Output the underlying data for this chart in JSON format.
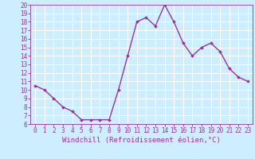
{
  "x": [
    0,
    1,
    2,
    3,
    4,
    5,
    6,
    7,
    8,
    9,
    10,
    11,
    12,
    13,
    14,
    15,
    16,
    17,
    18,
    19,
    20,
    21,
    22,
    23
  ],
  "y": [
    10.5,
    10.0,
    9.0,
    8.0,
    7.5,
    6.5,
    6.5,
    6.5,
    6.5,
    10.0,
    14.0,
    18.0,
    18.5,
    17.5,
    20.0,
    18.0,
    15.5,
    14.0,
    15.0,
    15.5,
    14.5,
    12.5,
    11.5,
    11.0
  ],
  "line_color": "#993399",
  "marker": "D",
  "marker_size": 2.0,
  "linewidth": 1.0,
  "bg_color": "#cceeff",
  "grid_color": "#ffffff",
  "tick_color": "#993399",
  "label_color": "#993399",
  "xlabel": "Windchill (Refroidissement éolien,°C)",
  "xlabel_fontsize": 6.5,
  "tick_fontsize": 5.5,
  "ylim": [
    6,
    20
  ],
  "yticks": [
    6,
    7,
    8,
    9,
    10,
    11,
    12,
    13,
    14,
    15,
    16,
    17,
    18,
    19,
    20
  ],
  "xticks": [
    0,
    1,
    2,
    3,
    4,
    5,
    6,
    7,
    8,
    9,
    10,
    11,
    12,
    13,
    14,
    15,
    16,
    17,
    18,
    19,
    20,
    21,
    22,
    23
  ]
}
